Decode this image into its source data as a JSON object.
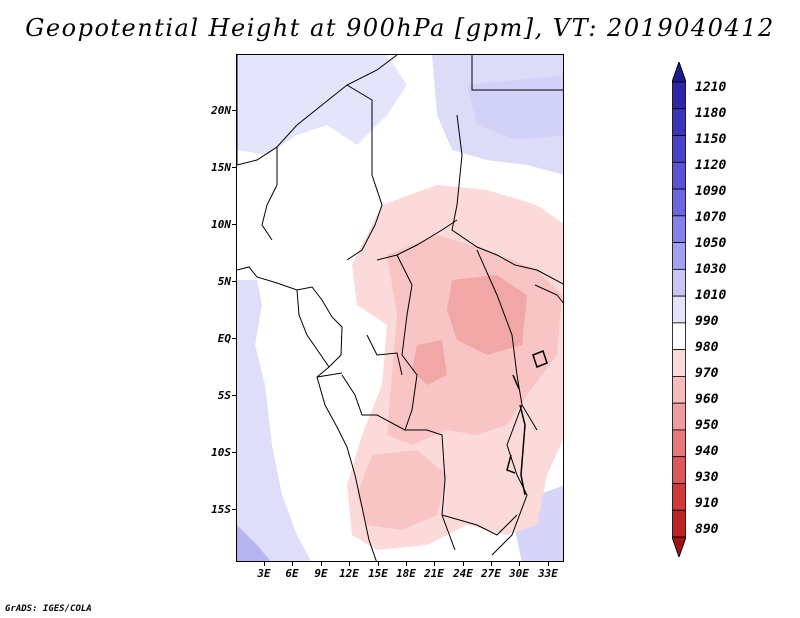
{
  "title": "Geopotential Height at 900hPa [gpm], VT: 2019040412",
  "credit": "GrADS: IGES/COLA",
  "map": {
    "region": "Central Africa",
    "lat_labels": [
      "20N",
      "15N",
      "10N",
      "5N",
      "EQ",
      "5S",
      "10S",
      "15S"
    ],
    "lon_labels": [
      "3E",
      "6E",
      "9E",
      "12E",
      "15E",
      "18E",
      "21E",
      "24E",
      "27E",
      "30E",
      "33E"
    ]
  },
  "colorbar": {
    "levels": [
      "1210",
      "1180",
      "1150",
      "1120",
      "1090",
      "1070",
      "1050",
      "1030",
      "1010",
      "990",
      "980",
      "970",
      "960",
      "950",
      "940",
      "930",
      "910",
      "890"
    ],
    "colors": [
      "#1e1a8c",
      "#2d27a6",
      "#3b34bb",
      "#4a43c9",
      "#5a53d6",
      "#6d66e0",
      "#8580ea",
      "#a3a0f2",
      "#c7c6f7",
      "#e3e3fb",
      "#ffffff",
      "#fbdada",
      "#f6bcbc",
      "#ef9c9c",
      "#e67a7a",
      "#dc5858",
      "#cf3a3a",
      "#bd2424",
      "#a01414"
    ]
  }
}
